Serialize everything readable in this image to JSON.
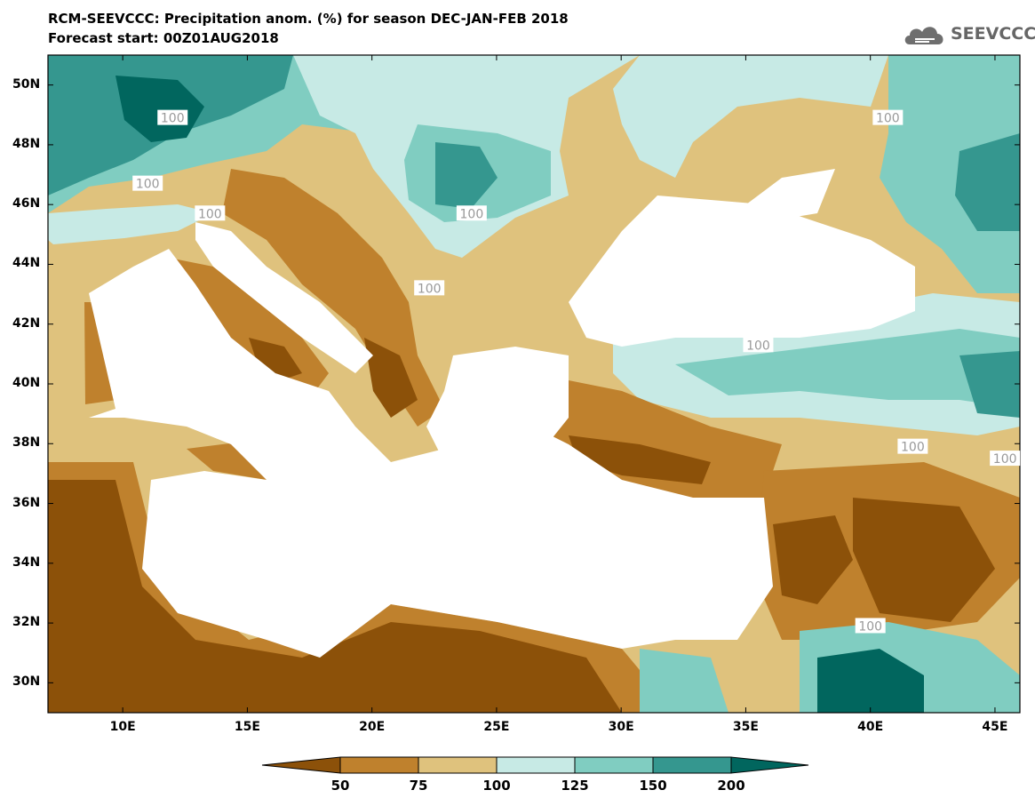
{
  "title": {
    "line1": "RCM-SEEVCCC: Precipitation anom. (%) for season DEC-JAN-FEB 2018",
    "line2": "Forecast start: 00Z01AUG2018"
  },
  "brand": {
    "name": "SEEVCCC",
    "icon": "cloud-logo-icon"
  },
  "map": {
    "lon_range": [
      7,
      46
    ],
    "lat_range": [
      29,
      51
    ],
    "lat_labels": [
      "50N",
      "48N",
      "46N",
      "44N",
      "42N",
      "40N",
      "38N",
      "36N",
      "34N",
      "32N",
      "30N"
    ],
    "lon_labels": [
      "10E",
      "15E",
      "20E",
      "25E",
      "30E",
      "35E",
      "40E",
      "45E"
    ],
    "contour_label": "100",
    "contour_labels": [
      "100",
      "100",
      "100",
      "100",
      "100",
      "100",
      "100",
      "100",
      "100",
      "100"
    ]
  },
  "colorbar": {
    "colors": [
      "#8c5109",
      "#bf812d",
      "#dfc27d",
      "#c7eae5",
      "#80cdc1",
      "#35978f",
      "#01665e"
    ],
    "labels": [
      "50",
      "75",
      "100",
      "125",
      "150",
      "200"
    ]
  },
  "palette": {
    "dark_brown": "#8c5109",
    "brown": "#bf812d",
    "tan": "#dfc27d",
    "light_teal": "#c7eae5",
    "teal": "#80cdc1",
    "dark_teal": "#35978f",
    "darkest_teal": "#01665e",
    "sea": "#ffffff"
  }
}
